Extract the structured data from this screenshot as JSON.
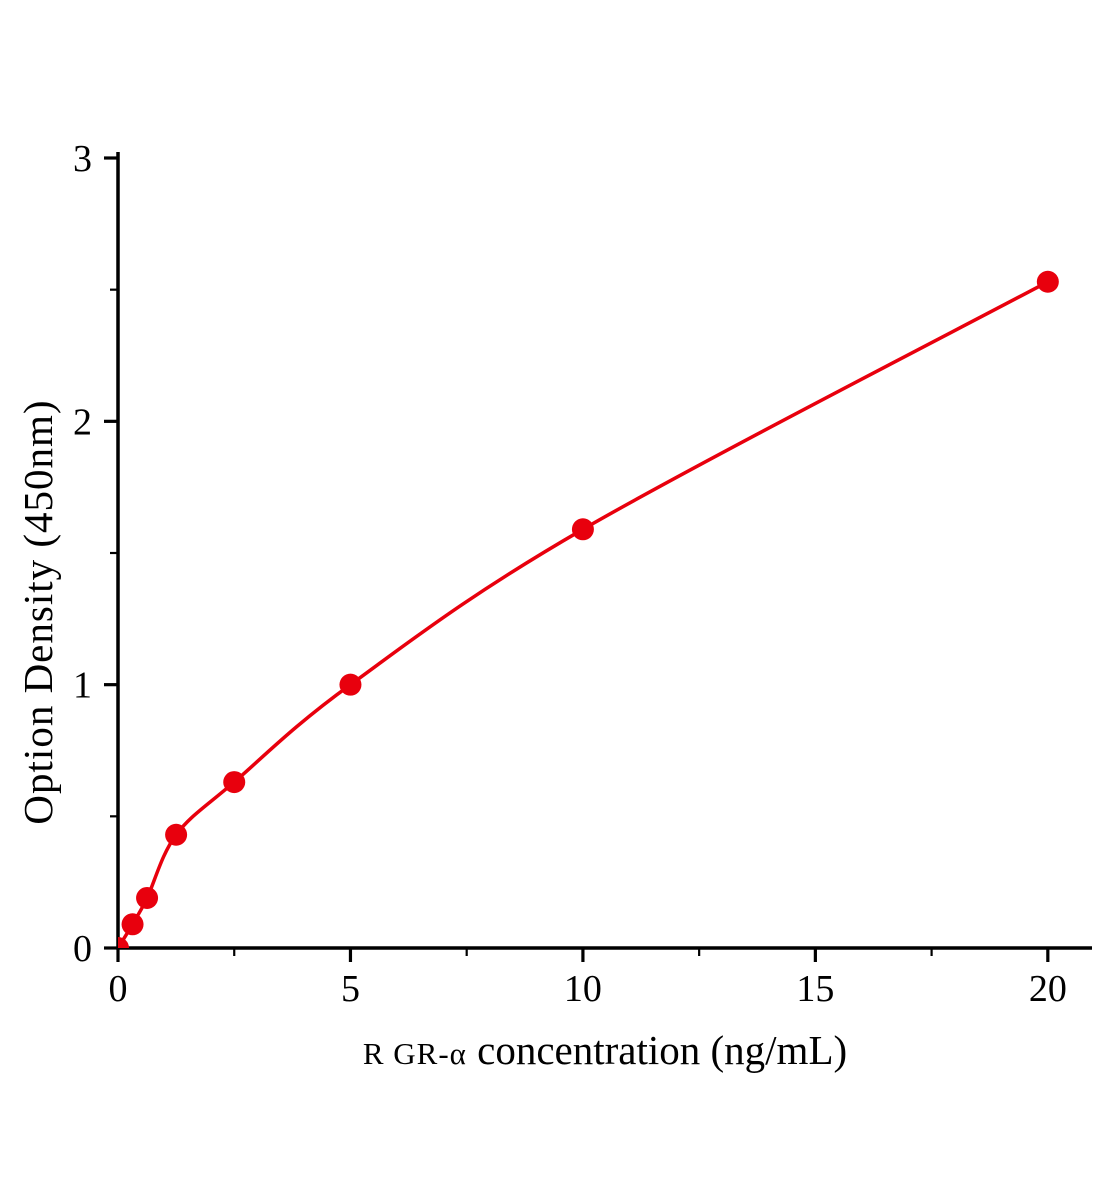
{
  "chart_data": {
    "type": "scatter",
    "title": "",
    "xlabel_prefix": "R GR-α",
    "xlabel_main": " concentration (ng/mL)",
    "xlabel": "R GR-α concentration (ng/mL)",
    "ylabel": "Option Density (450nm)",
    "x": [
      0,
      0.313,
      0.625,
      1.25,
      2.5,
      5,
      10,
      20
    ],
    "y": [
      0,
      0.09,
      0.19,
      0.43,
      0.63,
      1.0,
      1.59,
      2.53
    ],
    "xlim": [
      0,
      20.95
    ],
    "ylim": [
      0,
      3
    ],
    "xticks": [
      0,
      5,
      10,
      15,
      20
    ],
    "yticks": [
      0,
      1,
      2,
      3
    ],
    "xticks_minor": [
      2.5,
      7.5,
      12.5,
      17.5
    ],
    "yticks_minor": [
      0.5,
      1.5,
      2.5
    ],
    "grid": false,
    "legend_position": "none",
    "line_color": "#e8000d",
    "marker_color": "#e8000d",
    "axis_color": "#000000",
    "marker_radius": 11
  }
}
